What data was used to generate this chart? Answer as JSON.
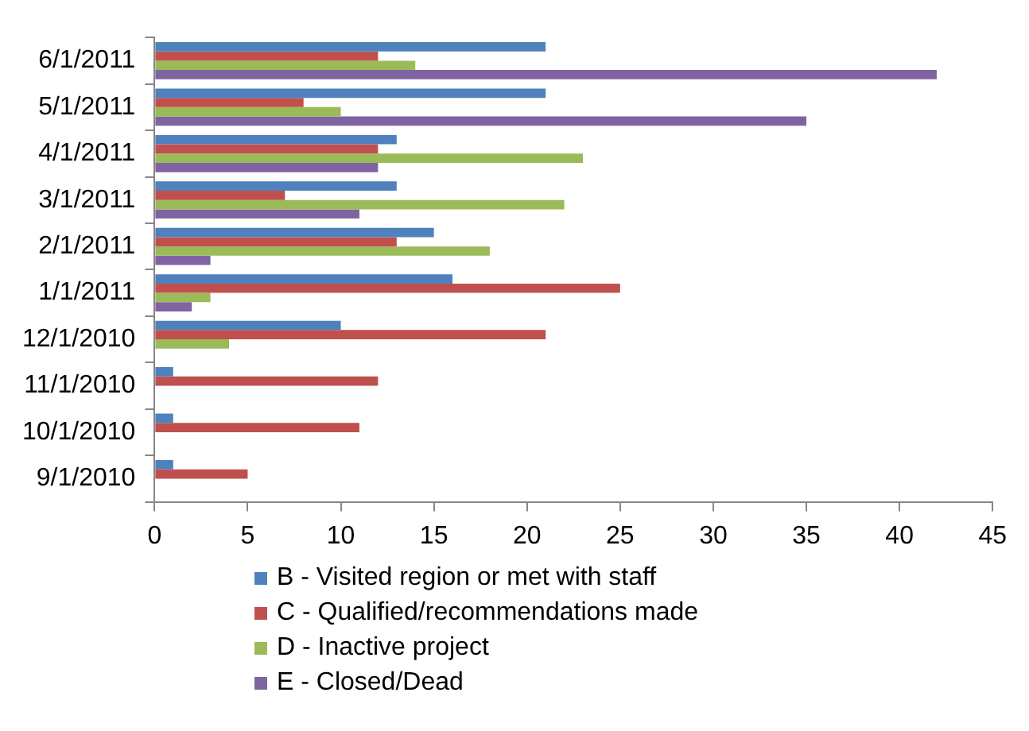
{
  "chart_data": {
    "type": "bar",
    "orientation": "horizontal",
    "categories": [
      "6/1/2011",
      "5/1/2011",
      "4/1/2011",
      "3/1/2011",
      "2/1/2011",
      "1/1/2011",
      "12/1/2010",
      "11/1/2010",
      "10/1/2010",
      "9/1/2010"
    ],
    "series": [
      {
        "name": "B - Visited region or met with staff",
        "color": "#4f81bd",
        "values": [
          21,
          21,
          13,
          13,
          15,
          16,
          10,
          1,
          1,
          1
        ]
      },
      {
        "name": "C - Qualified/recommendations made",
        "color": "#c0504d",
        "values": [
          12,
          8,
          12,
          7,
          13,
          25,
          21,
          12,
          11,
          5
        ]
      },
      {
        "name": "D - Inactive project",
        "color": "#9bbb59",
        "values": [
          14,
          10,
          23,
          22,
          18,
          3,
          4,
          0,
          0,
          0
        ]
      },
      {
        "name": "E - Closed/Dead",
        "color": "#8064a2",
        "values": [
          42,
          35,
          12,
          11,
          3,
          2,
          0,
          0,
          0,
          0
        ]
      }
    ],
    "xlim": [
      0,
      45
    ],
    "xticks": [
      0,
      5,
      10,
      15,
      20,
      25,
      30,
      35,
      40,
      45
    ],
    "grid": false,
    "legend": "bottom"
  }
}
